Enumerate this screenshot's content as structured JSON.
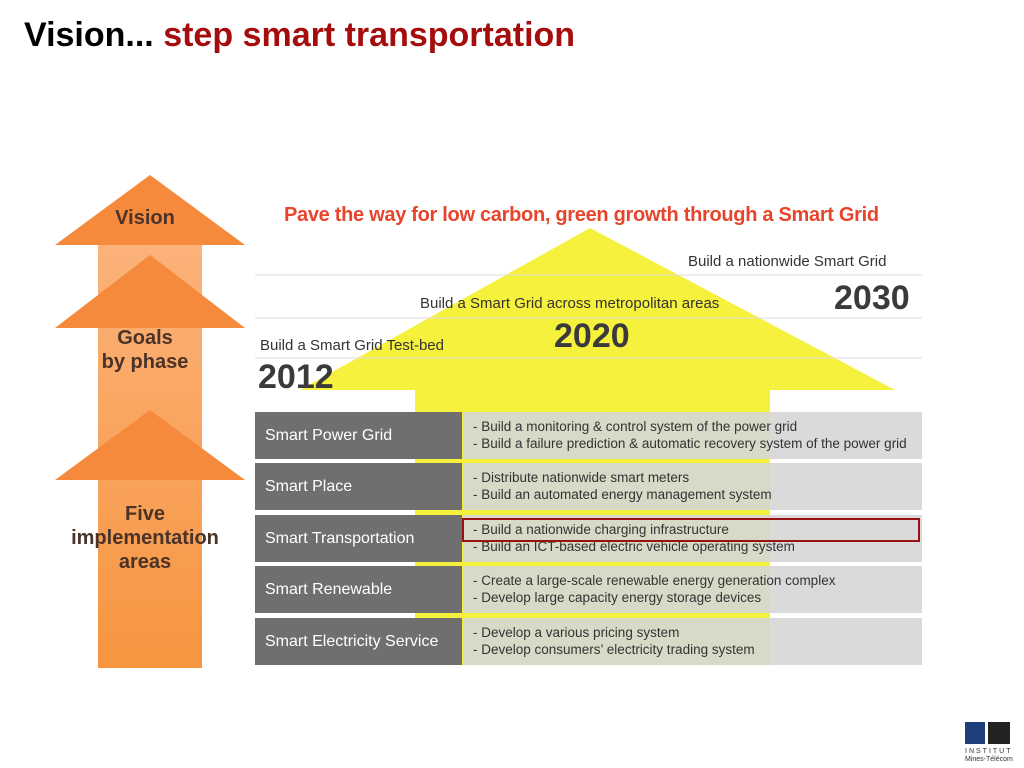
{
  "title": {
    "prefix": "Vision...",
    "highlight": "step smart transportation"
  },
  "arrows": [
    "Vision",
    [
      "Goals",
      "by phase"
    ],
    [
      "Five",
      "implementation",
      "areas"
    ]
  ],
  "headline": "Pave the way for low carbon, green growth through a Smart Grid",
  "phases": [
    {
      "label": "Build a Smart Grid Test-bed",
      "year": "2012"
    },
    {
      "label": "Build a Smart Grid across metropolitan areas",
      "year": "2020"
    },
    {
      "label": "Build a nationwide Smart Grid",
      "year": "2030"
    }
  ],
  "areas": [
    {
      "name": "Smart Power Grid",
      "items": [
        "- Build a monitoring & control system of  the power grid",
        "- Build a failure prediction & automatic recovery system of the power grid"
      ]
    },
    {
      "name": "Smart Place",
      "items": [
        "- Distribute nationwide smart meters",
        "- Build an automated energy management system"
      ]
    },
    {
      "name": "Smart Transportation",
      "items": [
        "- Build a nationwide charging infrastructure",
        "- Build an ICT-based electric vehicle operating system"
      ]
    },
    {
      "name": "Smart Renewable",
      "items": [
        "- Create a large-scale renewable energy generation complex",
        "- Develop large capacity energy storage devices"
      ]
    },
    {
      "name": "Smart Electricity Service",
      "items": [
        "- Develop a various pricing system",
        "- Develop consumers’ electricity trading system"
      ]
    }
  ],
  "logo": [
    "INSTITUT",
    "Mines-Télécom"
  ]
}
